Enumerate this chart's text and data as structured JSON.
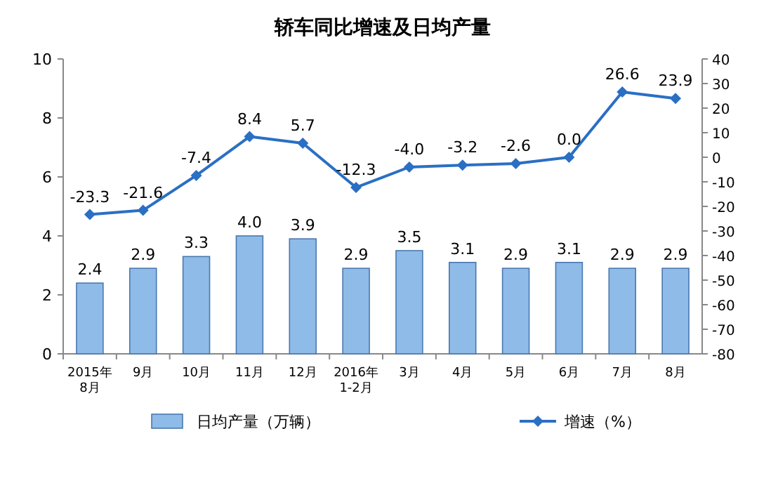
{
  "chart_data": {
    "type": "bar",
    "title": "轿车同比增速及日均产量",
    "categories": [
      "2015年\n8月",
      "9月",
      "10月",
      "11月",
      "12月",
      "2016年\n1-2月",
      "3月",
      "4月",
      "5月",
      "6月",
      "7月",
      "8月"
    ],
    "series": [
      {
        "name": "日均产量（万辆）",
        "color": "#8fbbe8",
        "values": [
          2.4,
          2.9,
          3.3,
          4.0,
          3.9,
          2.9,
          3.5,
          3.1,
          2.9,
          3.1,
          2.9,
          2.9
        ],
        "value_labels": [
          "2.4",
          "2.9",
          "3.3",
          "4.0",
          "3.9",
          "2.9",
          "3.5",
          "3.1",
          "2.9",
          "3.1",
          "2.9",
          "2.9"
        ]
      },
      {
        "name": "增速（%）",
        "type": "line",
        "axis": "y2",
        "color": "#2a6fc4",
        "values": [
          -23.3,
          -21.6,
          -7.4,
          8.4,
          5.7,
          -12.3,
          -4.0,
          -3.2,
          -2.6,
          0.0,
          26.6,
          23.9
        ],
        "value_labels": [
          "-23.3",
          "-21.6",
          "-7.4",
          "8.4",
          "5.7",
          "-12.3",
          "-4.0",
          "-3.2",
          "-2.6",
          "0.0",
          "26.6",
          "23.9"
        ]
      }
    ],
    "ylim": [
      0,
      10
    ],
    "yticks": [
      0,
      2,
      4,
      6,
      8,
      10
    ],
    "y2lim": [
      -80,
      40
    ],
    "y2ticks": [
      -80,
      -70,
      -60,
      -50,
      -40,
      -30,
      -20,
      -10,
      0,
      10,
      20,
      30,
      40
    ],
    "legend": "bottom",
    "marker": "diamond",
    "grid": false
  }
}
